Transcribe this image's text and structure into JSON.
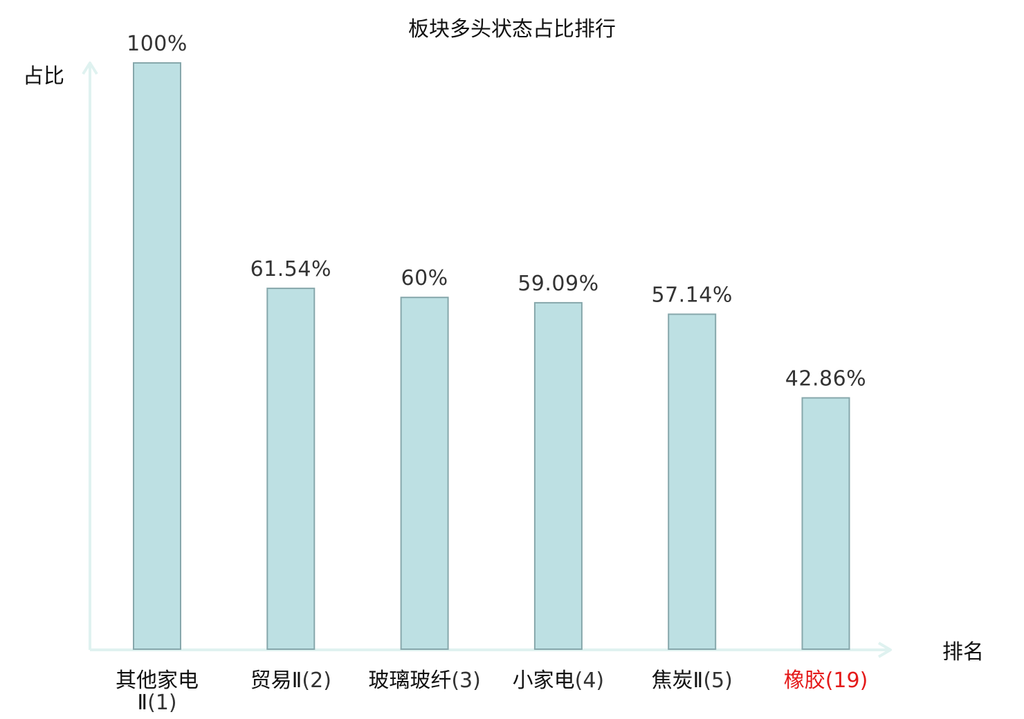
{
  "chart_data": {
    "type": "bar",
    "title": "板块多头状态占比排行",
    "ylabel": "占比",
    "xlabel": "排名",
    "ylim": [
      0,
      100
    ],
    "grid": false,
    "categories": [
      {
        "name": "其他家电Ⅱ",
        "rank": "(1)",
        "highlight": false
      },
      {
        "name": "贸易Ⅱ",
        "rank": "(2)",
        "highlight": false
      },
      {
        "name": "玻璃玻纤",
        "rank": "(3)",
        "highlight": false
      },
      {
        "name": "小家电",
        "rank": "(4)",
        "highlight": false
      },
      {
        "name": "焦炭Ⅱ",
        "rank": "(5)",
        "highlight": false
      },
      {
        "name": "橡胶",
        "rank": "(19)",
        "highlight": true
      }
    ],
    "values": [
      100,
      61.54,
      60,
      59.09,
      57.14,
      42.86
    ],
    "value_labels": [
      "100%",
      "61.54%",
      "60%",
      "59.09%",
      "57.14%",
      "42.86%"
    ],
    "colors": {
      "bar_fill": "#bde0e3",
      "bar_stroke": "#86a7ab",
      "axis": "#dff2f0",
      "highlight_text": "#e41a1a"
    }
  }
}
